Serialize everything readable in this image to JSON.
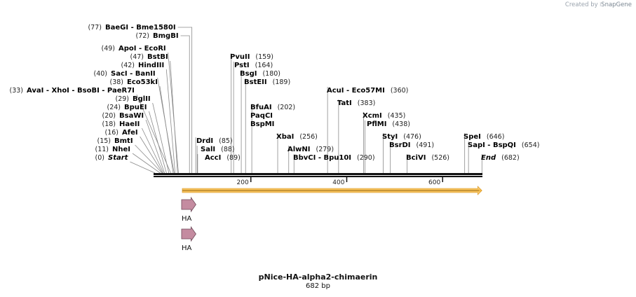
{
  "credit": {
    "prefix": "Created by",
    "brand": "SnapGene"
  },
  "map": {
    "name": "pNice-HA-alpha2-chimaerin",
    "length_label": "682 bp",
    "length": 682,
    "ticks": [
      200,
      400,
      600
    ]
  },
  "sites": [
    {
      "text": "BaeGI  -  Bme1580I",
      "pos": "(77)",
      "site": 77
    },
    {
      "text": "BmgBI",
      "pos": "(72)",
      "site": 72
    },
    {
      "text": "ApoI  -  EcoRI",
      "pos": "(49)",
      "site": 49
    },
    {
      "text": "BstBI",
      "pos": "(47)",
      "site": 47
    },
    {
      "text": "HindIII",
      "pos": "(42)",
      "site": 42
    },
    {
      "text": "SacI  -  BanII",
      "pos": "(40)",
      "site": 40
    },
    {
      "text": "Eco53kI",
      "pos": "(38)",
      "site": 38
    },
    {
      "text": "AvaI  -  XhoI  -  BsoBI  -  PaeR7I",
      "pos": "(33)",
      "site": 33
    },
    {
      "text": "BglII",
      "pos": "(29)",
      "site": 29
    },
    {
      "text": "BpuEI",
      "pos": "(24)",
      "site": 24
    },
    {
      "text": "BsaWI",
      "pos": "(20)",
      "site": 20
    },
    {
      "text": "HaeII",
      "pos": "(18)",
      "site": 18
    },
    {
      "text": "AfeI",
      "pos": "(16)",
      "site": 16
    },
    {
      "text": "BmtI",
      "pos": "(15)",
      "site": 15
    },
    {
      "text": "NheI",
      "pos": "(11)",
      "site": 11
    },
    {
      "text": "Start",
      "pos": "(0)",
      "site": 0,
      "italic": true
    },
    {
      "text": "DrdI",
      "pos": "(85)",
      "site": 85
    },
    {
      "text": "SalI",
      "pos": "(88)",
      "site": 88
    },
    {
      "text": "AccI",
      "pos": "(89)",
      "site": 89
    },
    {
      "text": "PvuII",
      "pos": "(159)",
      "site": 159
    },
    {
      "text": "PstI",
      "pos": "(164)",
      "site": 164
    },
    {
      "text": "BsgI",
      "pos": "(180)",
      "site": 180
    },
    {
      "text": "BstEII",
      "pos": "(189)",
      "site": 189
    },
    {
      "text": "BfuAI",
      "pos": "(202)",
      "site": 202
    },
    {
      "text": "PaqCI",
      "pos": "",
      "site": 202
    },
    {
      "text": "BspMI",
      "pos": "",
      "site": 202
    },
    {
      "text": "XbaI",
      "pos": "(256)",
      "site": 256
    },
    {
      "text": "AlwNI",
      "pos": "(279)",
      "site": 279
    },
    {
      "text": "BbvCI  -  Bpu10I",
      "pos": "(290)",
      "site": 290
    },
    {
      "text": "AcuI  -  Eco57MI",
      "pos": "(360)",
      "site": 360
    },
    {
      "text": "TatI",
      "pos": "(383)",
      "site": 383
    },
    {
      "text": "XcmI",
      "pos": "(435)",
      "site": 435
    },
    {
      "text": "PflMI",
      "pos": "(438)",
      "site": 438
    },
    {
      "text": "StyI",
      "pos": "(476)",
      "site": 476
    },
    {
      "text": "BsrDI",
      "pos": "(491)",
      "site": 491
    },
    {
      "text": "BciVI",
      "pos": "(526)",
      "site": 526
    },
    {
      "text": "SpeI",
      "pos": "(646)",
      "site": 646
    },
    {
      "text": "SapI  -  BspQI",
      "pos": "(654)",
      "site": 654
    },
    {
      "text": "End",
      "pos": "(682)",
      "site": 682,
      "italic": true
    }
  ],
  "orf": {
    "start": 57,
    "end": 682,
    "color": "#f5b63f"
  },
  "features": [
    {
      "label": "HA",
      "start": 57,
      "end": 84,
      "color": "#c48ba0"
    },
    {
      "label": "HA",
      "start": 57,
      "end": 84,
      "color": "#c48ba0"
    }
  ]
}
